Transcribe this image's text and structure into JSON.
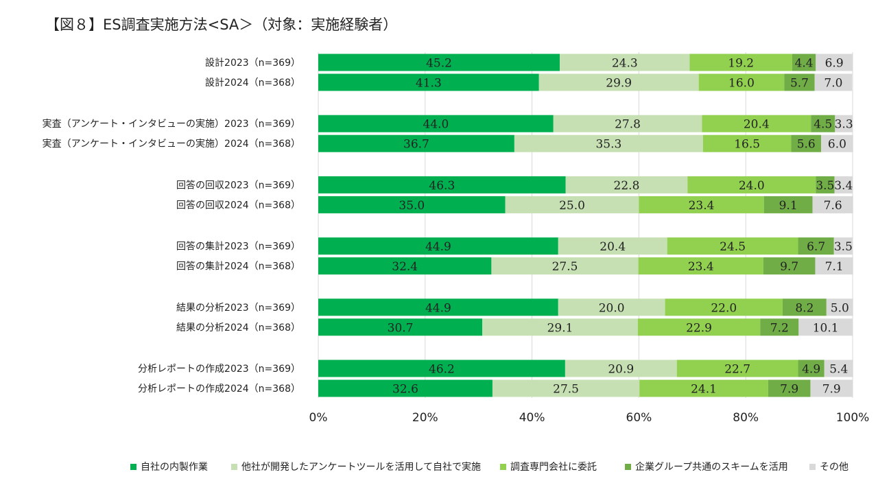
{
  "chart_data": {
    "type": "bar",
    "orientation": "horizontal",
    "stacked": true,
    "title": "【図８】ES調査実施方法<SA＞（対象：実施経験者）",
    "categories": [
      "設計2023（n=369）",
      "設計2024（n=368）",
      "実査（アンケート・インタビューの実施）2023（n=369）",
      "実査（アンケート・インタビューの実施）2024（n=368）",
      "回答の回収2023（n=369）",
      "回答の回収2024（n=368）",
      "回答の集計2023（n=369）",
      "回答の集計2024（n=368）",
      "結果の分析2023（n=369）",
      "結果の分析2024（n=368）",
      "分析レポートの作成2023（n=369）",
      "分析レポートの作成2024（n=368）"
    ],
    "series": [
      {
        "name": "自社の内製作業",
        "color": "#00b050",
        "values": [
          45.2,
          41.3,
          44.0,
          36.7,
          46.3,
          35.0,
          44.9,
          32.4,
          44.9,
          30.7,
          46.2,
          32.6
        ]
      },
      {
        "name": "他社が開発したアンケートツールを活用して自社で実施",
        "color": "#c6e0b4",
        "values": [
          24.3,
          29.9,
          27.8,
          35.3,
          22.8,
          25.0,
          20.4,
          27.5,
          20.0,
          29.1,
          20.9,
          27.5
        ]
      },
      {
        "name": "調査専門会社に委託",
        "color": "#92d050",
        "values": [
          19.2,
          16.0,
          20.4,
          16.5,
          24.0,
          23.4,
          24.5,
          23.4,
          22.0,
          22.9,
          22.7,
          24.1
        ]
      },
      {
        "name": "企業グループ共通のスキームを活用",
        "color": "#70ad47",
        "values": [
          4.4,
          5.7,
          4.5,
          5.6,
          3.5,
          9.1,
          6.7,
          9.7,
          8.2,
          7.2,
          4.9,
          7.9
        ]
      },
      {
        "name": "その他",
        "color": "#d9d9d9",
        "values": [
          6.9,
          7.0,
          3.3,
          6.0,
          3.4,
          7.6,
          3.5,
          7.1,
          5.0,
          10.1,
          5.4,
          7.9
        ]
      }
    ],
    "x_ticks": [
      "0%",
      "20%",
      "40%",
      "60%",
      "80%",
      "100%"
    ],
    "xlim": [
      0,
      100
    ],
    "grid": true,
    "legend_position": "bottom"
  }
}
